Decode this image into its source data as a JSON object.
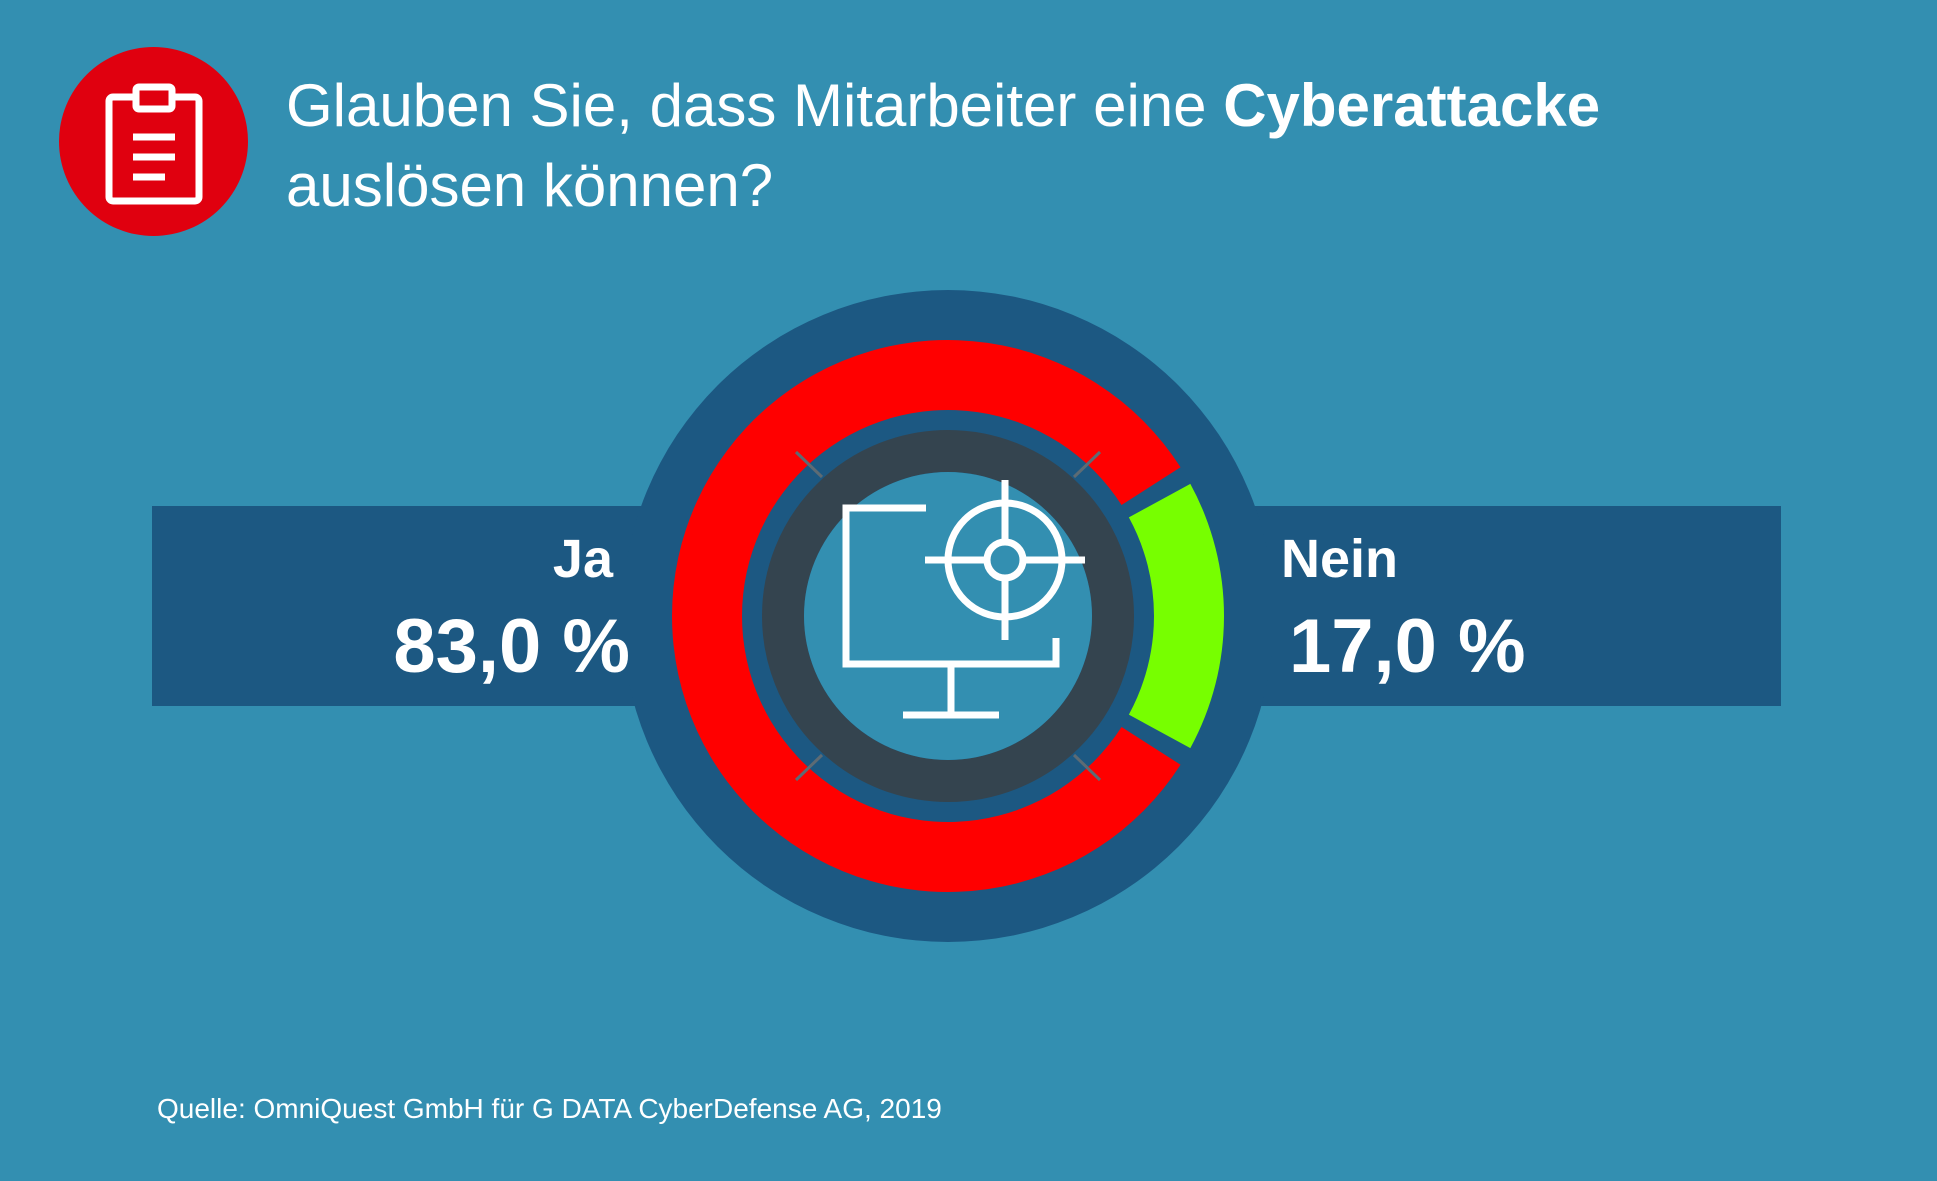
{
  "title": {
    "part1": "Glauben Sie, dass Mitarbeiter eine ",
    "emphasis": "Cyberattacke",
    "part2": "auslösen können?"
  },
  "icons": {
    "badge": "clipboard-icon",
    "center": "monitor-target-icon"
  },
  "colors": {
    "background": "#338fb1",
    "band": "#1c5882",
    "badge": "#e0000f",
    "ja": "#ff0000",
    "nein": "#77ff00",
    "inner_ring": "#34444f"
  },
  "chart_data": {
    "type": "pie",
    "categories": [
      "Ja",
      "Nein"
    ],
    "values": [
      83.0,
      17.0
    ],
    "value_labels": [
      "83,0 %",
      "17,0 %"
    ],
    "colors": [
      "#ff0000",
      "#77ff00"
    ]
  },
  "source": "Quelle: OmniQuest GmbH für G DATA CyberDefense AG, 2019"
}
